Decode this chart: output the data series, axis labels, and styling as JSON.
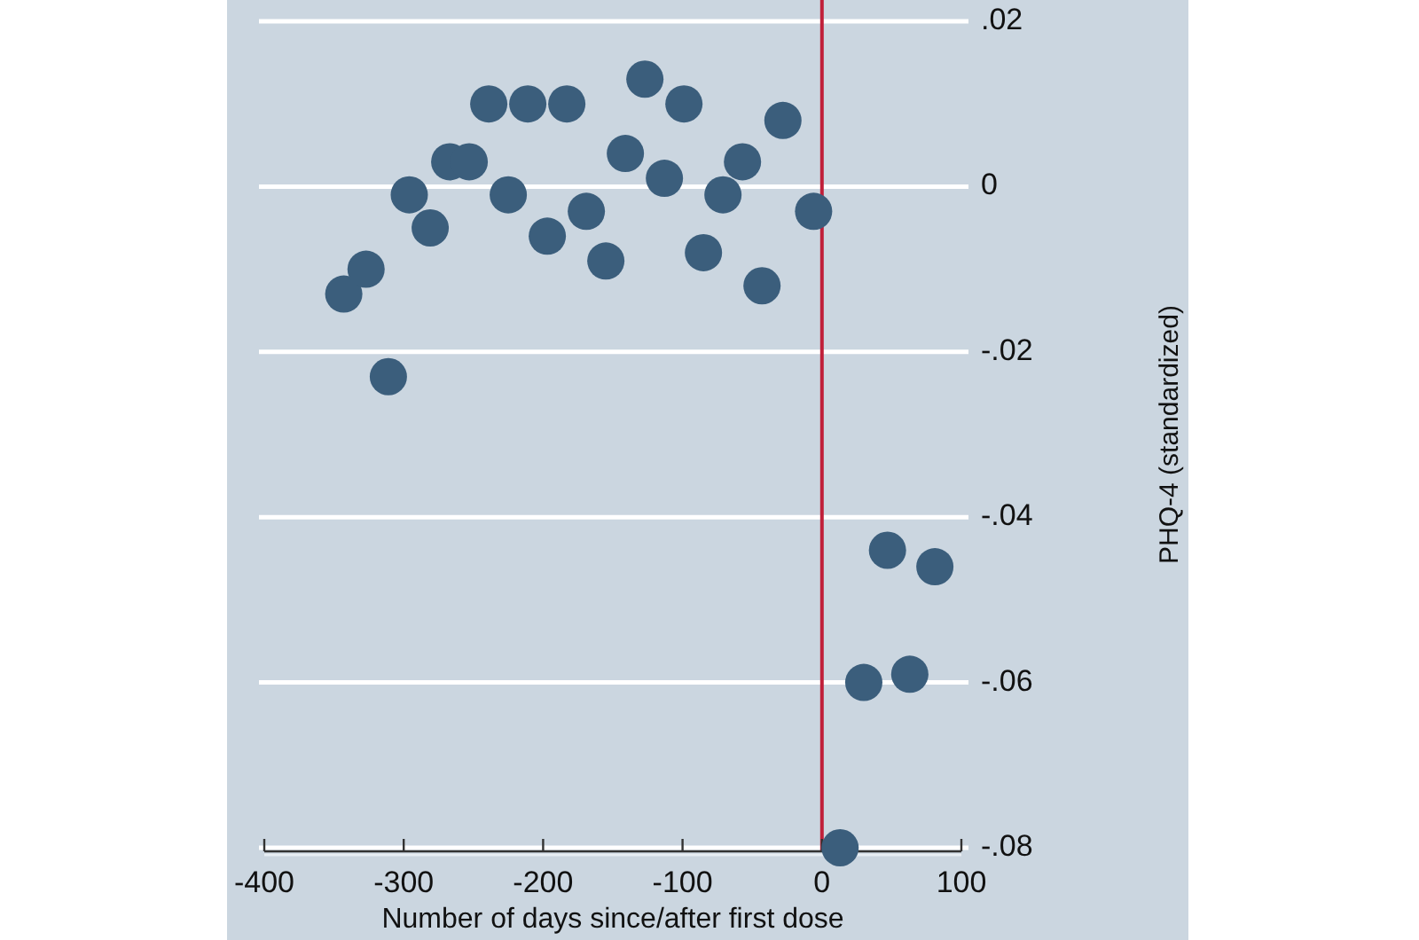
{
  "chart_data": {
    "type": "scatter",
    "xlabel": "Number of days since/after first dose",
    "ylabel": "PHQ-4 (standardized)",
    "x": [
      -343,
      -327,
      -311,
      -296,
      -281,
      -267,
      -253,
      -239,
      -225,
      -211,
      -197,
      -183,
      -169,
      -155,
      -141,
      -127,
      -113,
      -99,
      -85,
      -71,
      -57,
      -43,
      -28,
      -6,
      13,
      30,
      47,
      63,
      81
    ],
    "series": [
      {
        "color": "#3b5e7c",
        "values": [
          -0.013,
          -0.01,
          -0.023,
          -0.001,
          -0.005,
          0.003,
          0.003,
          0.01,
          -0.001,
          0.01,
          -0.006,
          0.01,
          -0.003,
          -0.009,
          0.004,
          0.013,
          0.001,
          0.01,
          -0.008,
          -0.001,
          0.003,
          -0.012,
          0.008,
          -0.003,
          -0.08,
          -0.06,
          -0.044,
          -0.059,
          -0.046
        ]
      }
    ],
    "xlim": [
      -400,
      100
    ],
    "ylim": [
      -0.08,
      0.02
    ],
    "xticks": [
      -400,
      -300,
      -200,
      -100,
      0,
      100
    ],
    "yticks": [
      {
        "value": -0.08,
        "label": "-.08"
      },
      {
        "value": -0.06,
        "label": "-.06"
      },
      {
        "value": -0.04,
        "label": "-.04"
      },
      {
        "value": -0.02,
        "label": "-.02"
      },
      {
        "value": 0,
        "label": "0"
      },
      {
        "value": 0.02,
        "label": ".02"
      }
    ],
    "grid": "y",
    "marker": "circle",
    "ref_lines": [
      {
        "axis": "x",
        "value": 0,
        "color": "#c0203a"
      }
    ]
  }
}
